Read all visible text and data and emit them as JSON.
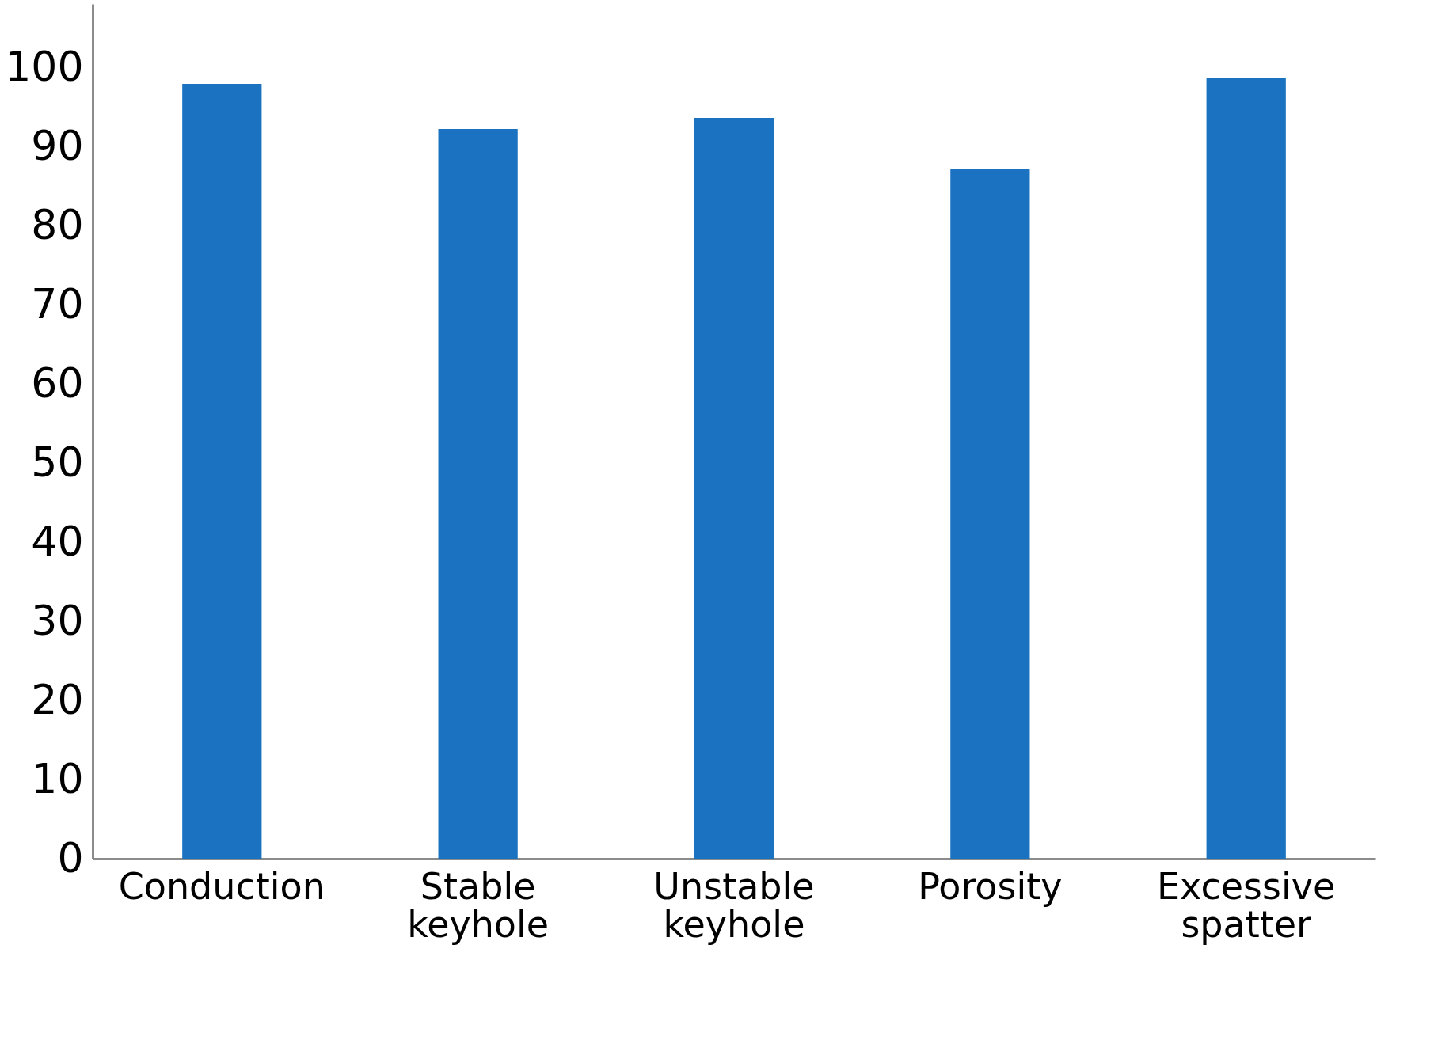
{
  "chart_data": {
    "type": "bar",
    "categories": [
      "Conduction",
      "Stable keyhole",
      "Unstable keyhole",
      "Porosity",
      "Excessive spatter"
    ],
    "values": [
      97.9,
      92.2,
      93.6,
      87.2,
      98.6
    ],
    "color": "#1b72c0",
    "ylim": [
      0,
      108
    ],
    "yticks": [
      0,
      10,
      20,
      30,
      40,
      50,
      60,
      70,
      80,
      90,
      100
    ],
    "grid": false
  }
}
